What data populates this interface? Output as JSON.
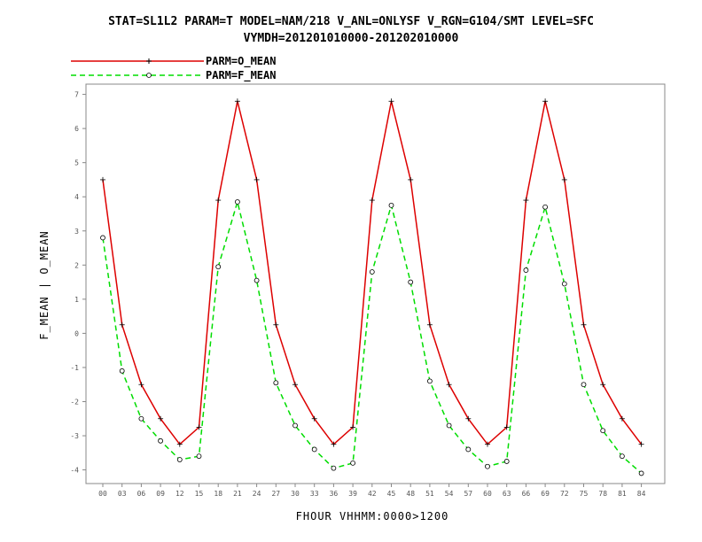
{
  "chart_data": {
    "type": "line",
    "title_line1": "STAT=SL1L2 PARAM=T MODEL=NAM/218 V_ANL=ONLYSF V_RGN=G104/SMT LEVEL=SFC",
    "title_line2": "VYMDH=201201010000-201202010000",
    "xlabel": "FHOUR VHHMM:0000>1200",
    "ylabel": "F_MEAN | O_MEAN",
    "x": [
      "00",
      "03",
      "06",
      "09",
      "12",
      "15",
      "18",
      "21",
      "24",
      "27",
      "30",
      "33",
      "36",
      "39",
      "42",
      "45",
      "48",
      "51",
      "54",
      "57",
      "60",
      "63",
      "66",
      "69",
      "72",
      "75",
      "78",
      "81",
      "84"
    ],
    "ylim": [
      -4.4,
      7.3
    ],
    "yticks": [
      -4,
      -3,
      -2,
      -1,
      0,
      1,
      2,
      3,
      4,
      5,
      6,
      7
    ],
    "grid": false,
    "legend_position": "top-left",
    "series": [
      {
        "name": "PARM=O_MEAN",
        "color": "#dd0000",
        "dash": false,
        "marker": "plus",
        "values": [
          4.5,
          0.25,
          -1.5,
          -2.5,
          -3.25,
          -2.75,
          3.9,
          6.8,
          4.5,
          0.25,
          -1.5,
          -2.5,
          -3.25,
          -2.75,
          3.9,
          6.8,
          4.5,
          0.25,
          -1.5,
          -2.5,
          -3.25,
          -2.75,
          3.9,
          6.8,
          4.5,
          0.25,
          -1.5,
          -2.5,
          -3.25
        ]
      },
      {
        "name": "PARM=F_MEAN",
        "color": "#00dd00",
        "dash": true,
        "marker": "circle",
        "values": [
          2.8,
          -1.1,
          -2.5,
          -3.15,
          -3.7,
          -3.6,
          1.95,
          3.85,
          1.55,
          -1.45,
          -2.7,
          -3.4,
          -3.95,
          -3.8,
          1.8,
          3.75,
          1.5,
          -1.4,
          -2.7,
          -3.4,
          -3.9,
          -3.75,
          1.85,
          3.7,
          1.45,
          -1.5,
          -2.85,
          -3.6,
          -4.1
        ]
      }
    ]
  }
}
